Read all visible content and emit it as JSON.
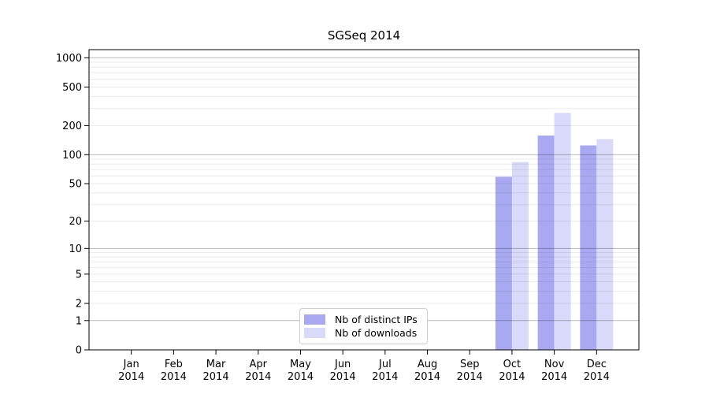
{
  "title": "SGSeq 2014",
  "legend": {
    "items": [
      {
        "label": "Nb of distinct IPs",
        "color": "#a9a9f2"
      },
      {
        "label": "Nb of downloads",
        "color": "#d9d9f9"
      }
    ]
  },
  "chart_data": {
    "type": "bar",
    "title": "SGSeq 2014",
    "xlabel": "",
    "ylabel": "",
    "scale": "log1p",
    "grid": "on",
    "legend_position": "inside-bottom-center",
    "categories": [
      "Jan",
      "Feb",
      "Mar",
      "Apr",
      "May",
      "Jun",
      "Jul",
      "Aug",
      "Sep",
      "Oct",
      "Nov",
      "Dec"
    ],
    "category_year": "2014",
    "series": [
      {
        "name": "Nb of distinct IPs",
        "color": "#a9a9f2",
        "values": [
          0,
          0,
          0,
          0,
          0,
          0,
          0,
          0,
          0,
          59,
          158,
          125
        ]
      },
      {
        "name": "Nb of downloads",
        "color": "#d9d9f9",
        "values": [
          0,
          0,
          0,
          0,
          0,
          0,
          0,
          0,
          0,
          84,
          271,
          145
        ]
      }
    ],
    "y_ticks": [
      0,
      1,
      2,
      5,
      10,
      20,
      50,
      100,
      200,
      500,
      1000
    ],
    "ylim": [
      0,
      1000
    ]
  }
}
